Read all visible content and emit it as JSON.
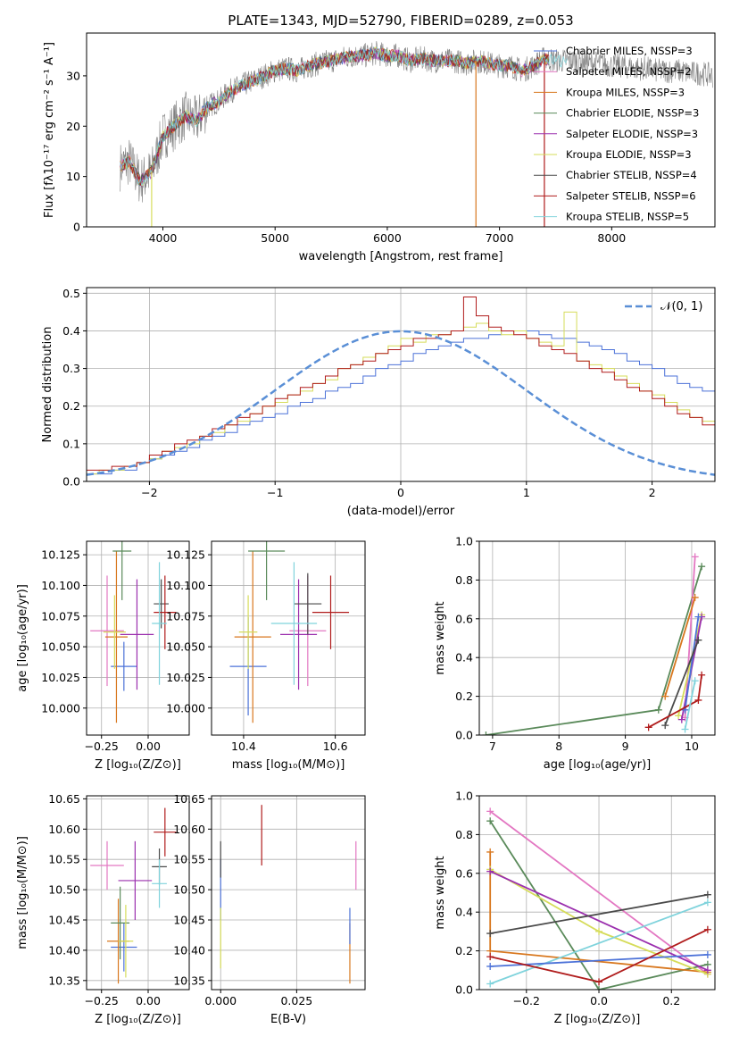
{
  "chart_data": [
    {
      "type": "line",
      "title": "PLATE=1343, MJD=52790, FIBERID=0289, z=0.053",
      "xlabel": "wavelength [Angstrom, rest frame]",
      "ylabel": "Flux [fλ10⁻¹⁷ erg cm⁻² s⁻¹ A⁻¹]",
      "xlim": [
        3320,
        8920
      ],
      "ylim": [
        0,
        38.5
      ],
      "xticks": [
        "4000",
        "5000",
        "6000",
        "7000",
        "8000"
      ],
      "yticks": [
        "0",
        "10",
        "20",
        "30"
      ],
      "grid": false,
      "legend_position": "lower-right",
      "series": [
        {
          "name": "Chabrier MILES, NSSP=3",
          "color": "#4c72d8"
        },
        {
          "name": "Salpeter MILES, NSSP=2",
          "color": "#e377c2"
        },
        {
          "name": "Kroupa MILES, NSSP=3",
          "color": "#d8771e"
        },
        {
          "name": "Chabrier ELODIE, NSSP=3",
          "color": "#5a8a5a"
        },
        {
          "name": "Salpeter ELODIE, NSSP=3",
          "color": "#9b2fae"
        },
        {
          "name": "Kroupa ELODIE, NSSP=3",
          "color": "#d6dc5a"
        },
        {
          "name": "Chabrier STELIB, NSSP=4",
          "color": "#4a4a4a"
        },
        {
          "name": "Salpeter STELIB, NSSP=6",
          "color": "#b01c1c"
        },
        {
          "name": "Kroupa STELIB, NSSP=5",
          "color": "#7fd3dc"
        }
      ],
      "observed_color": "#808080",
      "spectrum_envelope": {
        "x": [
          3620,
          3700,
          3800,
          3900,
          4000,
          4100,
          4200,
          4300,
          4400,
          4500,
          4600,
          4700,
          4800,
          4900,
          5000,
          5100,
          5200,
          5300,
          5400,
          5500,
          5600,
          5700,
          5800,
          5900,
          6000,
          6100,
          6200,
          6300,
          6400,
          6500,
          6600,
          6700,
          6800,
          6900,
          7000,
          7100,
          7200,
          7300,
          7400,
          7500,
          7600,
          7700,
          7800,
          7900,
          8000,
          8100,
          8200,
          8300,
          8400,
          8500,
          8600,
          8700,
          8800,
          8900
        ],
        "y": [
          12,
          13,
          9,
          11,
          18,
          20,
          22,
          21,
          24,
          25,
          27,
          28,
          29,
          30,
          31,
          31.5,
          31,
          32,
          32.5,
          33,
          33.5,
          34,
          34,
          34.5,
          34,
          34,
          33,
          33.5,
          33,
          33,
          33,
          32.5,
          33,
          32.5,
          32,
          32,
          31,
          32,
          33.5,
          33,
          33,
          33,
          32.5,
          32.5,
          32,
          32,
          31.5,
          31.5,
          31,
          31,
          31,
          30.5,
          30.5,
          30
        ]
      }
    },
    {
      "type": "bar",
      "xlabel": "(data-model)/error",
      "ylabel": "Normed distribution",
      "xlim": [
        -2.5,
        2.5
      ],
      "ylim": [
        0,
        0.515
      ],
      "xticks": [
        "−2",
        "−1",
        "0",
        "1",
        "2"
      ],
      "yticks": [
        "0.0",
        "0.1",
        "0.2",
        "0.3",
        "0.4",
        "0.5"
      ],
      "grid": true,
      "legend": [
        "𝒩(0, 1)"
      ],
      "legend_position": "top-right",
      "reference_curve": "normal(0,1)",
      "bin_width": 0.1,
      "bin_start": -2.5,
      "series": [
        {
          "color": "#4c72d8",
          "values": [
            0.02,
            0.02,
            0.03,
            0.03,
            0.05,
            0.06,
            0.07,
            0.08,
            0.09,
            0.11,
            0.12,
            0.13,
            0.15,
            0.16,
            0.17,
            0.18,
            0.2,
            0.21,
            0.22,
            0.24,
            0.25,
            0.26,
            0.28,
            0.3,
            0.31,
            0.32,
            0.34,
            0.35,
            0.36,
            0.37,
            0.38,
            0.38,
            0.39,
            0.4,
            0.4,
            0.4,
            0.39,
            0.38,
            0.38,
            0.37,
            0.36,
            0.35,
            0.34,
            0.32,
            0.31,
            0.3,
            0.28,
            0.26,
            0.25,
            0.24,
            0.22
          ]
        },
        {
          "color": "#d6dc5a",
          "values": [
            0.02,
            0.03,
            0.03,
            0.04,
            0.05,
            0.06,
            0.08,
            0.09,
            0.1,
            0.12,
            0.13,
            0.15,
            0.16,
            0.18,
            0.2,
            0.21,
            0.23,
            0.24,
            0.26,
            0.27,
            0.3,
            0.31,
            0.33,
            0.34,
            0.36,
            0.38,
            0.37,
            0.39,
            0.39,
            0.4,
            0.41,
            0.42,
            0.4,
            0.39,
            0.4,
            0.38,
            0.37,
            0.36,
            0.45,
            0.32,
            0.31,
            0.3,
            0.28,
            0.26,
            0.24,
            0.23,
            0.21,
            0.19,
            0.17,
            0.16,
            0.15
          ]
        },
        {
          "color": "#b01c1c",
          "values": [
            0.03,
            0.03,
            0.04,
            0.04,
            0.05,
            0.07,
            0.08,
            0.1,
            0.11,
            0.12,
            0.14,
            0.15,
            0.17,
            0.18,
            0.2,
            0.22,
            0.23,
            0.25,
            0.26,
            0.28,
            0.3,
            0.31,
            0.32,
            0.34,
            0.35,
            0.36,
            0.38,
            0.38,
            0.39,
            0.4,
            0.49,
            0.44,
            0.41,
            0.4,
            0.39,
            0.38,
            0.36,
            0.35,
            0.34,
            0.32,
            0.3,
            0.29,
            0.27,
            0.25,
            0.24,
            0.22,
            0.2,
            0.18,
            0.17,
            0.15,
            0.14
          ]
        }
      ]
    },
    {
      "type": "scatter",
      "xlabel": "Z [log₁₀(Z/Z⊙)]",
      "ylabel": "age  [log₁₀(age/yr)]",
      "xlim": [
        -0.33,
        0.22
      ],
      "ylim": [
        9.978,
        10.136
      ],
      "xticks": [
        "−0.25",
        "0.00"
      ],
      "yticks": [
        "10.000",
        "10.025",
        "10.050",
        "10.075",
        "10.100",
        "10.125"
      ],
      "grid": true,
      "points": [
        {
          "color": "#4c72d8",
          "x": -0.13,
          "y": 10.034,
          "xerr": 0.07,
          "yerr": 0.02
        },
        {
          "color": "#e377c2",
          "x": -0.22,
          "y": 10.063,
          "xerr": 0.09,
          "yerr": 0.045
        },
        {
          "color": "#d8771e",
          "x": -0.17,
          "y": 10.058,
          "xerr": 0.06,
          "yerr": 0.07
        },
        {
          "color": "#5a8a5a",
          "x": -0.14,
          "y": 10.128,
          "xerr": 0.05,
          "yerr": 0.04
        },
        {
          "color": "#9b2fae",
          "x": -0.06,
          "y": 10.06,
          "xerr": 0.09,
          "yerr": 0.045
        },
        {
          "color": "#d6dc5a",
          "x": -0.18,
          "y": 10.062,
          "xerr": 0.06,
          "yerr": 0.03
        },
        {
          "color": "#4a4a4a",
          "x": 0.07,
          "y": 10.085,
          "xerr": 0.04,
          "yerr": 0.02
        },
        {
          "color": "#b01c1c",
          "x": 0.09,
          "y": 10.078,
          "xerr": 0.06,
          "yerr": 0.03
        },
        {
          "color": "#7fd3dc",
          "x": 0.06,
          "y": 10.069,
          "xerr": 0.04,
          "yerr": 0.05
        }
      ]
    },
    {
      "type": "scatter",
      "xlabel": "mass [log₁₀(M/M⊙)]",
      "ylabel": "",
      "xlim": [
        10.33,
        10.665
      ],
      "ylim": [
        9.978,
        10.136
      ],
      "xticks": [
        "10.4",
        "10.6"
      ],
      "yticks": [
        "10.000",
        "10.025",
        "10.050",
        "10.075",
        "10.100",
        "10.125"
      ],
      "grid": true,
      "points": [
        {
          "color": "#4c72d8",
          "x": 10.41,
          "y": 10.034,
          "xerr": 0.04,
          "yerr": 0.04
        },
        {
          "color": "#e377c2",
          "x": 10.54,
          "y": 10.063,
          "xerr": 0.04,
          "yerr": 0.045
        },
        {
          "color": "#d8771e",
          "x": 10.42,
          "y": 10.058,
          "xerr": 0.04,
          "yerr": 0.07
        },
        {
          "color": "#5a8a5a",
          "x": 10.45,
          "y": 10.128,
          "xerr": 0.04,
          "yerr": 0.04
        },
        {
          "color": "#9b2fae",
          "x": 10.52,
          "y": 10.06,
          "xerr": 0.04,
          "yerr": 0.045
        },
        {
          "color": "#d6dc5a",
          "x": 10.41,
          "y": 10.062,
          "xerr": 0.02,
          "yerr": 0.03
        },
        {
          "color": "#4a4a4a",
          "x": 10.54,
          "y": 10.085,
          "xerr": 0.03,
          "yerr": 0.025
        },
        {
          "color": "#b01c1c",
          "x": 10.59,
          "y": 10.078,
          "xerr": 0.04,
          "yerr": 0.03
        },
        {
          "color": "#7fd3dc",
          "x": 10.51,
          "y": 10.069,
          "xerr": 0.05,
          "yerr": 0.05
        }
      ]
    },
    {
      "type": "line",
      "xlabel": "age  [log₁₀(age/yr)]",
      "ylabel": "mass weight",
      "xlim": [
        6.8,
        10.35
      ],
      "ylim": [
        0,
        1.0
      ],
      "xticks": [
        "7",
        "8",
        "9",
        "10"
      ],
      "yticks": [
        "0.0",
        "0.2",
        "0.4",
        "0.6",
        "0.8",
        "1.0"
      ],
      "grid": true,
      "series": [
        {
          "color": "#5a8a5a",
          "x": [
            6.9,
            9.5,
            10.15
          ],
          "y": [
            0.0,
            0.13,
            0.87
          ]
        },
        {
          "color": "#e377c2",
          "x": [
            9.9,
            10.05
          ],
          "y": [
            0.09,
            0.92
          ]
        },
        {
          "color": "#d8771e",
          "x": [
            9.6,
            10.05
          ],
          "y": [
            0.2,
            0.71
          ]
        },
        {
          "color": "#d6dc5a",
          "x": [
            9.8,
            10.15
          ],
          "y": [
            0.1,
            0.62
          ]
        },
        {
          "color": "#9b2fae",
          "x": [
            9.85,
            10.15
          ],
          "y": [
            0.08,
            0.61
          ]
        },
        {
          "color": "#4c72d8",
          "x": [
            9.9,
            10.1
          ],
          "y": [
            0.13,
            0.61
          ]
        },
        {
          "color": "#4a4a4a",
          "x": [
            9.6,
            10.1
          ],
          "y": [
            0.05,
            0.49
          ]
        },
        {
          "color": "#b01c1c",
          "x": [
            9.35,
            10.1,
            10.15
          ],
          "y": [
            0.04,
            0.18,
            0.31
          ]
        },
        {
          "color": "#7fd3dc",
          "x": [
            9.9,
            10.05
          ],
          "y": [
            0.03,
            0.28
          ]
        }
      ]
    },
    {
      "type": "scatter",
      "xlabel": "Z [log₁₀(Z/Z⊙)]",
      "ylabel": "mass [log₁₀(M/M⊙)]",
      "xlim": [
        -0.33,
        0.22
      ],
      "ylim": [
        10.335,
        10.655
      ],
      "xticks": [
        "−0.25",
        "0.00"
      ],
      "yticks": [
        "10.35",
        "10.40",
        "10.45",
        "10.50",
        "10.55",
        "10.60",
        "10.65"
      ],
      "grid": true,
      "points": [
        {
          "color": "#4c72d8",
          "x": -0.13,
          "y": 10.405,
          "xerr": 0.07,
          "yerr": 0.04
        },
        {
          "color": "#e377c2",
          "x": -0.22,
          "y": 10.54,
          "xerr": 0.09,
          "yerr": 0.04
        },
        {
          "color": "#d8771e",
          "x": -0.16,
          "y": 10.415,
          "xerr": 0.06,
          "yerr": 0.07
        },
        {
          "color": "#5a8a5a",
          "x": -0.15,
          "y": 10.445,
          "xerr": 0.05,
          "yerr": 0.06
        },
        {
          "color": "#9b2fae",
          "x": -0.07,
          "y": 10.515,
          "xerr": 0.09,
          "yerr": 0.065
        },
        {
          "color": "#d6dc5a",
          "x": -0.12,
          "y": 10.415,
          "xerr": 0.04,
          "yerr": 0.06
        },
        {
          "color": "#4a4a4a",
          "x": 0.06,
          "y": 10.538,
          "xerr": 0.04,
          "yerr": 0.03
        },
        {
          "color": "#b01c1c",
          "x": 0.09,
          "y": 10.595,
          "xerr": 0.06,
          "yerr": 0.04
        },
        {
          "color": "#7fd3dc",
          "x": 0.06,
          "y": 10.51,
          "xerr": 0.04,
          "yerr": 0.04
        }
      ]
    },
    {
      "type": "scatter",
      "xlabel": "E(B-V)",
      "ylabel": "",
      "xlim": [
        -0.003,
        0.0475
      ],
      "ylim": [
        10.335,
        10.655
      ],
      "xticks": [
        "0.000",
        "0.025"
      ],
      "yticks": [
        "10.35",
        "10.40",
        "10.45",
        "10.50",
        "10.55",
        "10.60",
        "10.65"
      ],
      "grid": true,
      "points": [
        {
          "color": "#4c72d8",
          "x": 0.0,
          "y": 10.5,
          "yerr": 0.05
        },
        {
          "color": "#4a4a4a",
          "x": 0.0,
          "y": 10.55,
          "yerr": 0.03
        },
        {
          "color": "#d6dc5a",
          "x": 0.0,
          "y": 10.42,
          "yerr": 0.05
        },
        {
          "color": "#b01c1c",
          "x": 0.0135,
          "y": 10.59,
          "yerr": 0.05
        },
        {
          "color": "#e377c2",
          "x": 0.0445,
          "y": 10.54,
          "yerr": 0.04
        },
        {
          "color": "#d8771e",
          "x": 0.0425,
          "y": 10.395,
          "yerr": 0.05
        },
        {
          "color": "#4c72d8",
          "x": 0.0425,
          "y": 10.44,
          "yerr": 0.03
        }
      ]
    },
    {
      "type": "line",
      "xlabel": "Z [log₁₀(Z/Z⊙)]",
      "ylabel": "mass weight",
      "xlim": [
        -0.33,
        0.32
      ],
      "ylim": [
        0,
        1.0
      ],
      "xticks": [
        "−0.2",
        "0.0",
        "0.2"
      ],
      "yticks": [
        "0.0",
        "0.2",
        "0.4",
        "0.6",
        "0.8",
        "1.0"
      ],
      "grid": true,
      "series": [
        {
          "color": "#e377c2",
          "x": [
            -0.3,
            0.3
          ],
          "y": [
            0.92,
            0.08
          ]
        },
        {
          "color": "#5a8a5a",
          "x": [
            -0.3,
            0.0,
            0.3
          ],
          "y": [
            0.87,
            0.0,
            0.13
          ]
        },
        {
          "color": "#d8771e",
          "x": [
            -0.3,
            -0.3,
            0.3
          ],
          "y": [
            0.71,
            0.2,
            0.09
          ]
        },
        {
          "color": "#d6dc5a",
          "x": [
            -0.3,
            0.0,
            0.3
          ],
          "y": [
            0.62,
            0.3,
            0.08
          ]
        },
        {
          "color": "#9b2fae",
          "x": [
            -0.3,
            0.3
          ],
          "y": [
            0.61,
            0.1
          ]
        },
        {
          "color": "#4a4a4a",
          "x": [
            -0.3,
            0.3
          ],
          "y": [
            0.29,
            0.49
          ]
        },
        {
          "color": "#7fd3dc",
          "x": [
            -0.3,
            0.3
          ],
          "y": [
            0.03,
            0.45
          ]
        },
        {
          "color": "#4c72d8",
          "x": [
            -0.3,
            0.3
          ],
          "y": [
            0.12,
            0.18
          ]
        },
        {
          "color": "#b01c1c",
          "x": [
            -0.3,
            0.0,
            0.3
          ],
          "y": [
            0.17,
            0.04,
            0.31
          ]
        }
      ]
    }
  ]
}
